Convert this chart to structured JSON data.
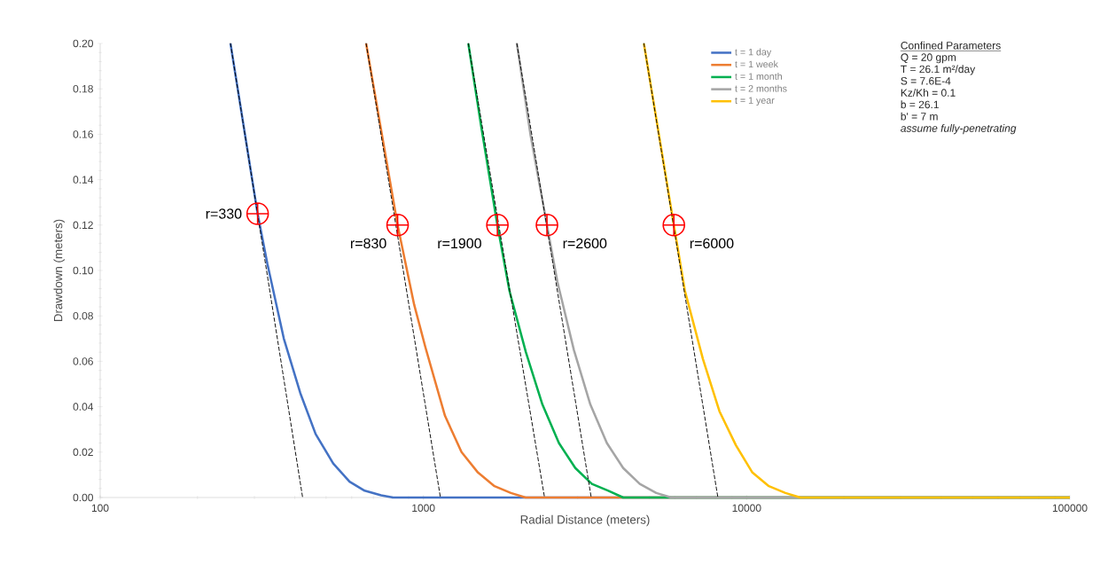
{
  "chart_data": {
    "type": "line",
    "xlabel": "Radial Distance (meters)",
    "ylabel": "Drawdown (meters)",
    "log": "x",
    "xlim": [
      100,
      100000
    ],
    "xticks": [
      100,
      1000,
      10000,
      100000
    ],
    "ylim": [
      0,
      0.2
    ],
    "yticks": [
      {
        "value": 0,
        "label": "0.00"
      },
      {
        "value": 0.02,
        "label": "0.02"
      },
      {
        "value": 0.04,
        "label": "0.04"
      },
      {
        "value": 0.06,
        "label": "0.06"
      },
      {
        "value": 0.08,
        "label": "0.08"
      },
      {
        "value": 0.1,
        "label": "0.10"
      },
      {
        "value": 0.12,
        "label": "0.12"
      },
      {
        "value": 0.14,
        "label": "0.14"
      },
      {
        "value": 0.16,
        "label": "0.16"
      },
      {
        "value": 0.18,
        "label": "0.18"
      },
      {
        "value": 0.2,
        "label": "0.20"
      }
    ],
    "legend": "top right",
    "marker": "none",
    "line_style": "solid",
    "series": [
      {
        "name": "t = 1 day",
        "color": "#4472c4",
        "x": [
          253,
          307,
          329,
          370,
          416,
          464,
          526,
          591,
          658,
          740,
          806,
          100000
        ],
        "values": [
          0.2,
          0.125,
          0.103,
          0.07,
          0.046,
          0.028,
          0.015,
          0.007,
          0.003,
          0.001,
          0,
          0
        ]
      },
      {
        "name": "t = 1 week",
        "color": "#ed7d31",
        "x": [
          665,
          832,
          936,
          1015,
          1166,
          1312,
          1475,
          1659,
          1865,
          2071,
          100000
        ],
        "values": [
          0.2,
          0.12,
          0.085,
          0.066,
          0.036,
          0.02,
          0.011,
          0.005,
          0.002,
          0,
          0
        ]
      },
      {
        "name": "t = 1 month",
        "color": "#00b050",
        "x": [
          1377,
          1507,
          1694,
          1846,
          2075,
          2334,
          2625,
          2951,
          3320,
          3734,
          4150,
          100000
        ],
        "values": [
          0.2,
          0.164,
          0.12,
          0.091,
          0.064,
          0.041,
          0.024,
          0.013,
          0.006,
          0.003,
          0,
          0
        ]
      },
      {
        "name": "t = 2 months",
        "color": "#a5a5a5",
        "x": [
          1946,
          2143,
          2411,
          2597,
          2921,
          3284,
          3694,
          4150,
          4670,
          5253,
          5845,
          100000
        ],
        "values": [
          0.2,
          0.16,
          0.12,
          0.095,
          0.065,
          0.041,
          0.024,
          0.013,
          0.006,
          0.002,
          0,
          0
        ]
      },
      {
        "name": "t = 1 year",
        "color": "#ffc000",
        "x": [
          4809,
          5954,
          6443,
          7325,
          8238,
          9265,
          10418,
          11716,
          13180,
          14660,
          100000
        ],
        "values": [
          0.2,
          0.12,
          0.091,
          0.061,
          0.038,
          0.023,
          0.011,
          0.005,
          0.002,
          0,
          0
        ]
      },
      {
        "type": "line",
        "color": "#000000",
        "line_style": "dashed",
        "x": [
          253,
          423
        ],
        "values": [
          0.2,
          0
        ]
      },
      {
        "type": "line",
        "color": "#000000",
        "line_style": "dashed",
        "x": [
          665,
          1129
        ],
        "values": [
          0.2,
          0
        ]
      },
      {
        "type": "line",
        "color": "#000000",
        "line_style": "dashed",
        "x": [
          1377,
          2370
        ],
        "values": [
          0.2,
          0
        ]
      },
      {
        "type": "line",
        "color": "#000000",
        "line_style": "dashed",
        "x": [
          1946,
          3305
        ],
        "values": [
          0.2,
          0
        ]
      },
      {
        "type": "line",
        "color": "#000000",
        "line_style": "dashed",
        "x": [
          4809,
          8147
        ],
        "values": [
          0.2,
          0
        ]
      },
      {
        "type": "scatter",
        "color": "#ff0000",
        "marker": "circle",
        "x": [
          307,
          832,
          1694,
          2411,
          5954
        ],
        "values": [
          0.125,
          0.12,
          0.12,
          0.12,
          0.12
        ]
      }
    ],
    "annotations": [
      {
        "text": "r=330",
        "x": 307,
        "y": 0.125
      },
      {
        "text": "r=830",
        "x": 832,
        "y": 0.12
      },
      {
        "text": "r=1900",
        "x": 1694,
        "y": 0.12
      },
      {
        "text": "r=2600",
        "x": 2411,
        "y": 0.12
      },
      {
        "text": "r=6000",
        "x": 5954,
        "y": 0.12
      },
      "Confined Parameters",
      "Q = 20 gpm",
      "T = 26.1 m²/day",
      "S = 7.6E-4",
      "Kz/Kh = 0.1",
      "b = 26.1",
      "b' = 7 m",
      "assume fully-penetrating"
    ]
  }
}
